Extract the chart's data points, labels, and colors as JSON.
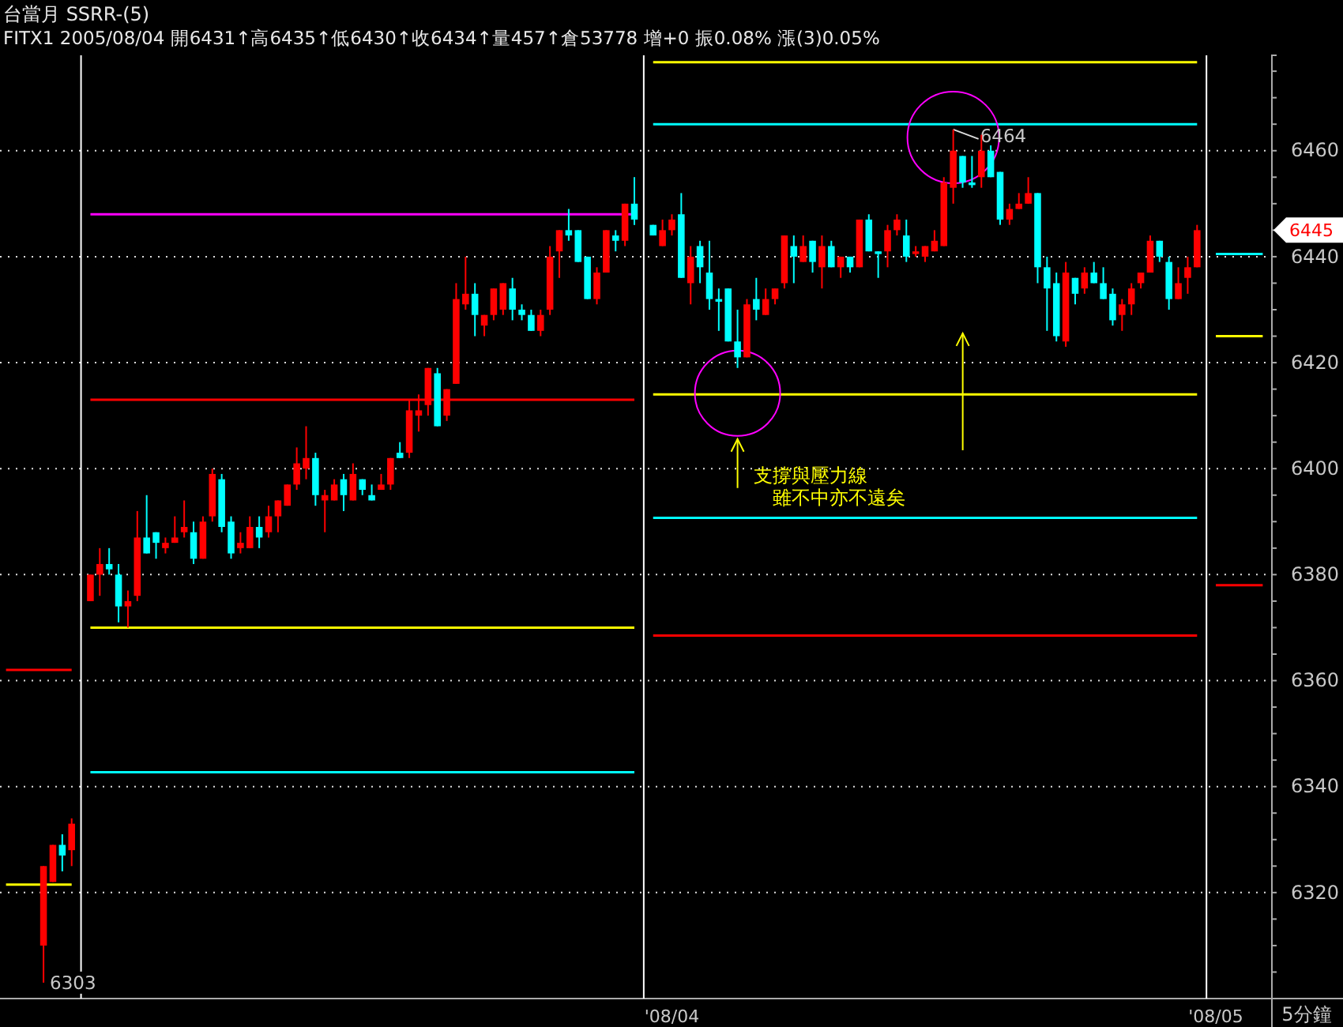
{
  "chart_data": {
    "type": "candlestick",
    "title": "台當月 SSRR-(5)",
    "subtitle": "FITX1 2005/08/04 開6431↑高6435↑低6430↑收6434↑量457↑倉53778 增+0 振0.08% 漲(3)0.05%",
    "xlabel": "5分鐘",
    "categories": [
      null,
      null,
      null,
      null,
      null,
      null,
      null,
      null,
      null,
      null,
      null,
      null,
      null,
      null,
      null,
      null,
      null,
      null,
      null,
      null,
      null,
      null,
      null,
      null,
      null,
      null,
      null,
      null,
      null,
      null,
      null,
      null,
      null,
      null,
      null,
      null,
      null,
      null,
      null,
      null,
      null,
      null,
      null,
      null,
      null,
      null,
      null,
      null,
      null,
      null,
      null,
      null,
      null,
      null,
      null,
      null,
      null,
      null,
      null,
      null,
      null,
      null,
      null,
      null,
      null,
      null,
      null,
      null,
      null,
      null,
      null,
      "'08/04",
      null,
      null,
      null,
      null,
      null,
      null,
      null,
      null,
      null,
      null,
      null,
      null,
      null,
      null,
      null,
      null,
      null,
      null,
      null,
      null,
      null,
      null,
      null,
      null,
      null,
      null,
      null,
      null,
      null,
      null,
      null,
      null,
      null,
      null,
      null,
      null,
      null,
      null,
      null,
      null,
      null,
      null,
      null,
      null,
      null,
      null,
      null,
      null,
      null,
      null,
      null,
      null,
      null,
      null,
      null,
      null,
      null,
      "'08/05",
      null,
      null,
      null,
      null,
      null
    ],
    "ohlc": [
      null,
      null,
      null,
      null,
      [
        6310,
        6325,
        6303,
        6325
      ],
      [
        6322,
        6329,
        6322,
        6329
      ],
      [
        6329,
        6331,
        6324,
        6327
      ],
      [
        6328,
        6334,
        6325,
        6333
      ],
      null,
      [
        6375,
        6380,
        6375,
        6380
      ],
      [
        6380,
        6385,
        6376,
        6382
      ],
      [
        6382,
        6385,
        6380,
        6381
      ],
      [
        6380,
        6382,
        6371,
        6374
      ],
      [
        6374,
        6377,
        6370,
        6375
      ],
      [
        6376,
        6392,
        6375,
        6387
      ],
      [
        6387,
        6395,
        6384,
        6384
      ],
      [
        6388,
        6388,
        6383,
        6386
      ],
      [
        6385,
        6387,
        6384,
        6386
      ],
      [
        6386,
        6391,
        6386,
        6387
      ],
      [
        6388,
        6394,
        6387,
        6389
      ],
      [
        6388,
        6390,
        6382,
        6383
      ],
      [
        6383,
        6391,
        6383,
        6390
      ],
      [
        6391,
        6400,
        6390,
        6399
      ],
      [
        6398,
        6399,
        6388,
        6389
      ],
      [
        6390,
        6391,
        6383,
        6384
      ],
      [
        6385,
        6388,
        6384,
        6386
      ],
      [
        6385,
        6391,
        6385,
        6389
      ],
      [
        6389,
        6391,
        6385,
        6387
      ],
      [
        6388,
        6393,
        6387,
        6391
      ],
      [
        6391,
        6394,
        6388,
        6394
      ],
      [
        6393,
        6397,
        6393,
        6397
      ],
      [
        6397,
        6404,
        6396,
        6401
      ],
      [
        6400,
        6408,
        6398,
        6402
      ],
      [
        6402,
        6403,
        6393,
        6395
      ],
      [
        6394,
        6396,
        6388,
        6395
      ],
      [
        6394,
        6398,
        6394,
        6397
      ],
      [
        6398,
        6399,
        6392,
        6395
      ],
      [
        6394,
        6401,
        6394,
        6399
      ],
      [
        6398,
        6398,
        6395,
        6396
      ],
      [
        6395,
        6397,
        6394,
        6394
      ],
      [
        6396,
        6399,
        6396,
        6397
      ],
      [
        6397,
        6402,
        6396,
        6402
      ],
      [
        6403,
        6405,
        6402,
        6402
      ],
      [
        6403,
        6413,
        6402,
        6411
      ],
      [
        6410,
        6414,
        6407,
        6411
      ],
      [
        6412,
        6419,
        6410,
        6419
      ],
      [
        6418,
        6419,
        6408,
        6408
      ],
      [
        6410,
        6415,
        6409,
        6415
      ],
      [
        6416,
        6435,
        6416,
        6432
      ],
      [
        6431,
        6440,
        6430,
        6433
      ],
      [
        6433,
        6435,
        6425,
        6429
      ],
      [
        6427,
        6429,
        6425,
        6429
      ],
      [
        6429,
        6434,
        6428,
        6434
      ],
      [
        6430,
        6435,
        6429,
        6435
      ],
      [
        6434,
        6436,
        6428,
        6430
      ],
      [
        6430,
        6431,
        6428,
        6429
      ],
      [
        6429,
        6430,
        6426,
        6426
      ],
      [
        6426,
        6430,
        6425,
        6429
      ],
      [
        6430,
        6442,
        6429,
        6440
      ],
      [
        6441,
        6445,
        6436,
        6445
      ],
      [
        6445,
        6449,
        6443,
        6444
      ],
      [
        6445,
        6445,
        6439,
        6439
      ],
      [
        6440,
        6440,
        6432,
        6432
      ],
      [
        6432,
        6438,
        6431,
        6437
      ],
      [
        6437,
        6445,
        6437,
        6445
      ],
      [
        6444,
        6445,
        6441,
        6443
      ],
      [
        6443,
        6450,
        6442,
        6450
      ],
      [
        6450,
        6455,
        6446,
        6447
      ],
      null,
      [
        6446,
        6446,
        6444,
        6444
      ],
      [
        6442,
        6447,
        6442,
        6445
      ],
      [
        6445,
        6448,
        6444,
        6447
      ],
      [
        6448,
        6452,
        6436,
        6436
      ],
      [
        6435,
        6442,
        6431,
        6440
      ],
      [
        6442,
        6443,
        6435,
        6438
      ],
      [
        6437,
        6443,
        6430,
        6432
      ],
      [
        6432,
        6434,
        6426,
        6431.5
      ],
      [
        6434,
        6434,
        6424,
        6424
      ],
      [
        6424,
        6430,
        6419,
        6421
      ],
      [
        6421,
        6432,
        6421,
        6431
      ],
      [
        6432,
        6436,
        6428,
        6430
      ],
      [
        6429,
        6434,
        6429,
        6432
      ],
      [
        6432,
        6434,
        6431,
        6434
      ],
      [
        6435,
        6444,
        6434,
        6444
      ],
      [
        6442,
        6444,
        6435,
        6440
      ],
      [
        6439,
        6444,
        6439,
        6442
      ],
      [
        6443,
        6443,
        6437,
        6439
      ],
      [
        6438,
        6444,
        6434,
        6442
      ],
      [
        6442,
        6443,
        6438,
        6438
      ],
      [
        6438,
        6440,
        6436,
        6440
      ],
      [
        6440,
        6440,
        6437,
        6438
      ],
      [
        6438,
        6447,
        6438,
        6447
      ],
      [
        6447,
        6448,
        6441,
        6441
      ],
      [
        6441,
        6441,
        6436,
        6440.5
      ],
      [
        6441,
        6446,
        6438,
        6445
      ],
      [
        6445,
        6448,
        6444,
        6447
      ],
      [
        6444,
        6447,
        6439,
        6440
      ],
      [
        6440.5,
        6442,
        6440,
        6441
      ],
      [
        6440,
        6442,
        6439,
        6442
      ],
      [
        6441,
        6445,
        6441,
        6443
      ],
      [
        6442,
        6455,
        6442,
        6454
      ],
      [
        6453,
        6464,
        6450,
        6460
      ],
      [
        6459,
        6459,
        6453,
        6454
      ],
      [
        6454,
        6459,
        6453,
        6453.5
      ],
      [
        6455,
        6463,
        6453,
        6460
      ],
      [
        6460,
        6461,
        6455,
        6455
      ],
      [
        6456,
        6456,
        6446,
        6447
      ],
      [
        6447,
        6450,
        6446,
        6449
      ],
      [
        6449,
        6452,
        6449,
        6450
      ],
      [
        6450,
        6455,
        6450,
        6452
      ],
      [
        6452,
        6452,
        6435,
        6438
      ],
      [
        6438,
        6440,
        6426,
        6434
      ],
      [
        6435,
        6437,
        6424,
        6425
      ],
      [
        6424,
        6439,
        6423,
        6437
      ],
      [
        6436,
        6436,
        6431,
        6433
      ],
      [
        6434,
        6438,
        6433,
        6437
      ],
      [
        6437,
        6439,
        6435,
        6435
      ],
      [
        6435,
        6438,
        6432,
        6432
      ],
      [
        6433,
        6434,
        6427,
        6428
      ],
      [
        6429,
        6432,
        6426,
        6431
      ],
      [
        6431,
        6435,
        6429,
        6434
      ],
      [
        6435,
        6437,
        6434,
        6437
      ],
      [
        6437,
        6444,
        6437,
        6443
      ],
      [
        6443,
        6443,
        6439,
        6440
      ],
      [
        6439,
        6440,
        6430,
        6432
      ],
      [
        6432,
        6438,
        6432,
        6435
      ],
      [
        6436,
        6440,
        6433,
        6438
      ],
      [
        6438,
        6446,
        6438,
        6445
      ],
      null,
      null,
      null,
      null,
      null,
      null,
      null
    ],
    "colors": [
      null,
      null,
      null,
      null,
      "#ff0000",
      "#ff0000",
      "#00ffff",
      "#ff0000",
      null,
      "#ff0000",
      "#ff0000",
      "#00ffff",
      "#00ffff",
      "#ff0000",
      "#ff0000",
      "#00ffff",
      "#00ffff",
      "#ff0000",
      "#ff0000",
      "#ff0000",
      "#00ffff",
      "#ff0000",
      "#ff0000",
      "#00ffff",
      "#00ffff",
      "#ff0000",
      "#ff0000",
      "#00ffff",
      "#ff0000",
      "#ff0000",
      "#ff0000",
      "#ff0000",
      "#ff0000",
      "#00ffff",
      "#ff0000",
      "#ff0000",
      "#00ffff",
      "#ff0000",
      "#00ffff",
      "#00ffff",
      "#ff0000",
      "#ff0000",
      "#00ffff",
      "#ff0000",
      "#ff0000",
      "#ff0000",
      "#00ffff",
      "#ff0000",
      "#ff0000",
      "#ff0000",
      "#00ffff",
      "#ff0000",
      "#ff0000",
      "#ff0000",
      "#00ffff",
      "#00ffff",
      "#00ffff",
      "#ff0000",
      "#ff0000",
      "#ff0000",
      "#00ffff",
      "#00ffff",
      "#00ffff",
      "#ff0000",
      "#ff0000",
      "#00ffff",
      "#ff0000",
      "#00ffff",
      null,
      "#00ffff",
      "#ff0000",
      "#ff0000",
      "#00ffff",
      "#ff0000",
      "#00ffff",
      "#00ffff",
      "#00ffff",
      "#00ffff",
      "#00ffff",
      "#ff0000",
      "#00ffff",
      "#ff0000",
      "#ff0000",
      "#ff0000",
      "#00ffff",
      "#ff0000",
      "#00ffff",
      "#ff0000",
      "#00ffff",
      "#ff0000",
      "#00ffff",
      "#ff0000",
      "#00ffff",
      "#00ffff",
      "#ff0000",
      "#ff0000",
      "#00ffff",
      "#ff0000",
      "#ff0000",
      "#ff0000",
      "#ff0000",
      "#ff0000",
      "#00ffff",
      "#00ffff",
      "#ff0000",
      "#00ffff",
      "#00ffff",
      "#ff0000",
      "#ff0000",
      "#ff0000",
      "#00ffff",
      "#00ffff",
      "#00ffff",
      "#ff0000",
      "#00ffff",
      "#ff0000",
      "#00ffff",
      "#00ffff",
      "#00ffff",
      "#ff0000",
      "#ff0000",
      "#ff0000",
      "#ff0000",
      "#00ffff",
      "#00ffff",
      "#ff0000",
      "#ff0000",
      "#ff0000",
      null,
      null,
      null,
      null,
      null,
      null,
      null
    ],
    "series": [
      {
        "type": "line",
        "color": "#ff0000",
        "values": [
          6362,
          6362,
          6362,
          6362,
          6362,
          6362,
          6362,
          6362,
          null,
          6413,
          6413,
          6413,
          6413,
          6413,
          6413,
          6413,
          6413,
          6413,
          6413,
          6413,
          6413,
          6413,
          6413,
          6413,
          6413,
          6413,
          6413,
          6413,
          6413,
          6413,
          6413,
          6413,
          6413,
          6413,
          6413,
          6413,
          6413,
          6413,
          6413,
          6413,
          6413,
          6413,
          6413,
          6413,
          6413,
          6413,
          6413,
          6413,
          6413,
          6413,
          6413,
          6413,
          6413,
          6413,
          6413,
          6413,
          6413,
          6413,
          6413,
          6413,
          6413,
          6413,
          6413,
          6413,
          6413,
          6413,
          6413,
          6413,
          null,
          6368.5,
          6368.5,
          6368.5,
          6368.5,
          6368.5,
          6368.5,
          6368.5,
          6368.5,
          6368.5,
          6368.5,
          6368.5,
          6368.5,
          6368.5,
          6368.5,
          6368.5,
          6368.5,
          6368.5,
          6368.5,
          6368.5,
          6368.5,
          6368.5,
          6368.5,
          6368.5,
          6368.5,
          6368.5,
          6368.5,
          6368.5,
          6368.5,
          6368.5,
          6368.5,
          6368.5,
          6368.5,
          6368.5,
          6368.5,
          6368.5,
          6368.5,
          6368.5,
          6368.5,
          6368.5,
          6368.5,
          6368.5,
          6368.5,
          6368.5,
          6368.5,
          6368.5,
          6368.5,
          6368.5,
          6368.5,
          6368.5,
          6368.5,
          6368.5,
          6368.5,
          6368.5,
          6368.5,
          6368.5,
          6368.5,
          6368.5,
          6368.5,
          6368.5,
          null,
          6378,
          6378,
          6378,
          6378,
          6378,
          6378
        ]
      },
      {
        "type": "line",
        "color": "#ffff00",
        "values": [
          6321.5,
          6321.5,
          6321.5,
          6321.5,
          6321.5,
          6321.5,
          6321.5,
          6321.5,
          null,
          6370,
          6370,
          6370,
          6370,
          6370,
          6370,
          6370,
          6370,
          6370,
          6370,
          6370,
          6370,
          6370,
          6370,
          6370,
          6370,
          6370,
          6370,
          6370,
          6370,
          6370,
          6370,
          6370,
          6370,
          6370,
          6370,
          6370,
          6370,
          6370,
          6370,
          6370,
          6370,
          6370,
          6370,
          6370,
          6370,
          6370,
          6370,
          6370,
          6370,
          6370,
          6370,
          6370,
          6370,
          6370,
          6370,
          6370,
          6370,
          6370,
          6370,
          6370,
          6370,
          6370,
          6370,
          6370,
          6370,
          6370,
          6370,
          6370,
          null,
          6414,
          6414,
          6414,
          6414,
          6414,
          6414,
          6414,
          6414,
          6414,
          6414,
          6414,
          6414,
          6414,
          6414,
          6414,
          6414,
          6414,
          6414,
          6414,
          6414,
          6414,
          6414,
          6414,
          6414,
          6414,
          6414,
          6414,
          6414,
          6414,
          6414,
          6414,
          6414,
          6414,
          6414,
          6414,
          6414,
          6414,
          6414,
          6414,
          6414,
          6414,
          6414,
          6414,
          6414,
          6414,
          6414,
          6414,
          6414,
          6414,
          6414,
          6414,
          6414,
          6414,
          6414,
          6414,
          6414,
          6414,
          6414,
          6414,
          null,
          6425,
          6425,
          6425,
          6425,
          6425,
          6425
        ]
      },
      {
        "type": "line",
        "color": "#00ffff",
        "values": [
          null,
          null,
          null,
          null,
          null,
          null,
          null,
          null,
          null,
          6342.7,
          6342.7,
          6342.7,
          6342.7,
          6342.7,
          6342.7,
          6342.7,
          6342.7,
          6342.7,
          6342.7,
          6342.7,
          6342.7,
          6342.7,
          6342.7,
          6342.7,
          6342.7,
          6342.7,
          6342.7,
          6342.7,
          6342.7,
          6342.7,
          6342.7,
          6342.7,
          6342.7,
          6342.7,
          6342.7,
          6342.7,
          6342.7,
          6342.7,
          6342.7,
          6342.7,
          6342.7,
          6342.7,
          6342.7,
          6342.7,
          6342.7,
          6342.7,
          6342.7,
          6342.7,
          6342.7,
          6342.7,
          6342.7,
          6342.7,
          6342.7,
          6342.7,
          6342.7,
          6342.7,
          6342.7,
          6342.7,
          6342.7,
          6342.7,
          6342.7,
          6342.7,
          6342.7,
          6342.7,
          6342.7,
          6342.7,
          6342.7,
          6342.7,
          null,
          6390.7,
          6390.7,
          6390.7,
          6390.7,
          6390.7,
          6390.7,
          6390.7,
          6390.7,
          6390.7,
          6390.7,
          6390.7,
          6390.7,
          6390.7,
          6390.7,
          6390.7,
          6390.7,
          6390.7,
          6390.7,
          6390.7,
          6390.7,
          6390.7,
          6390.7,
          6390.7,
          6390.7,
          6390.7,
          6390.7,
          6390.7,
          6390.7,
          6390.7,
          6390.7,
          6390.7,
          6390.7,
          6390.7,
          6390.7,
          6390.7,
          6390.7,
          6390.7,
          6390.7,
          6390.7,
          6390.7,
          6390.7,
          6390.7,
          6390.7,
          6390.7,
          6390.7,
          6390.7,
          6390.7,
          6390.7,
          6390.7,
          6390.7,
          6390.7,
          6390.7,
          6390.7,
          6390.7,
          6390.7,
          6390.7,
          6390.7,
          6390.7,
          6390.7,
          null,
          6440.5,
          6440.5,
          6440.5,
          6440.5,
          6440.5,
          6440.5
        ]
      },
      {
        "type": "line",
        "color": "#ffff00",
        "values": [
          null,
          null,
          null,
          null,
          null,
          null,
          null,
          null,
          null,
          null,
          null,
          null,
          null,
          null,
          null,
          null,
          null,
          null,
          null,
          null,
          null,
          null,
          null,
          null,
          null,
          null,
          null,
          null,
          null,
          null,
          null,
          null,
          null,
          null,
          null,
          null,
          null,
          null,
          null,
          null,
          null,
          null,
          null,
          null,
          null,
          null,
          null,
          null,
          null,
          null,
          null,
          null,
          null,
          null,
          null,
          null,
          null,
          null,
          null,
          null,
          null,
          null,
          null,
          null,
          null,
          null,
          null,
          null,
          null,
          6476.7,
          6476.7,
          6476.7,
          6476.7,
          6476.7,
          6476.7,
          6476.7,
          6476.7,
          6476.7,
          6476.7,
          6476.7,
          6476.7,
          6476.7,
          6476.7,
          6476.7,
          6476.7,
          6476.7,
          6476.7,
          6476.7,
          6476.7,
          6476.7,
          6476.7,
          6476.7,
          6476.7,
          6476.7,
          6476.7,
          6476.7,
          6476.7,
          6476.7,
          6476.7,
          6476.7,
          6476.7,
          6476.7,
          6476.7,
          6476.7,
          6476.7,
          6476.7,
          6476.7,
          6476.7,
          6476.7,
          6476.7,
          6476.7,
          6476.7,
          6476.7,
          6476.7,
          6476.7,
          6476.7,
          6476.7,
          6476.7,
          6476.7,
          6476.7,
          6476.7,
          6476.7,
          6476.7,
          6476.7,
          6476.7,
          6476.7,
          6476.7,
          6476.7,
          null,
          null,
          null,
          null,
          null,
          null,
          null
        ]
      },
      {
        "type": "line",
        "color": "#00ffff",
        "values": [
          null,
          null,
          null,
          null,
          null,
          null,
          null,
          null,
          null,
          null,
          null,
          null,
          null,
          null,
          null,
          null,
          null,
          null,
          null,
          null,
          null,
          null,
          null,
          null,
          null,
          null,
          null,
          null,
          null,
          null,
          null,
          null,
          null,
          null,
          null,
          null,
          null,
          null,
          null,
          null,
          null,
          null,
          null,
          null,
          null,
          null,
          null,
          null,
          null,
          null,
          null,
          null,
          null,
          null,
          null,
          null,
          null,
          null,
          null,
          null,
          null,
          null,
          null,
          null,
          null,
          null,
          null,
          null,
          null,
          6465,
          6465,
          6465,
          6465,
          6465,
          6465,
          6465,
          6465,
          6465,
          6465,
          6465,
          6465,
          6465,
          6465,
          6465,
          6465,
          6465,
          6465,
          6465,
          6465,
          6465,
          6465,
          6465,
          6465,
          6465,
          6465,
          6465,
          6465,
          6465,
          6465,
          6465,
          6465,
          6465,
          6465,
          6465,
          6465,
          6465,
          6465,
          6465,
          6465,
          6465,
          6465,
          6465,
          6465,
          6465,
          6465,
          6465,
          6465,
          6465,
          6465,
          6465,
          6465,
          6465,
          6465,
          6465,
          6465,
          6465,
          6465,
          6465,
          null,
          null,
          null,
          null,
          null,
          null,
          null
        ]
      },
      {
        "type": "line",
        "color": "#ff00ff",
        "values": [
          null,
          null,
          null,
          null,
          null,
          null,
          null,
          null,
          null,
          6448,
          6448,
          6448,
          6448,
          6448,
          6448,
          6448,
          6448,
          6448,
          6448,
          6448,
          6448,
          6448,
          6448,
          6448,
          6448,
          6448,
          6448,
          6448,
          6448,
          6448,
          6448,
          6448,
          6448,
          6448,
          6448,
          6448,
          6448,
          6448,
          6448,
          6448,
          6448,
          6448,
          6448,
          6448,
          6448,
          6448,
          6448,
          6448,
          6448,
          6448,
          6448,
          6448,
          6448,
          6448,
          6448,
          6448,
          6448,
          6448,
          6448,
          6448,
          6448,
          6448,
          6448,
          6448,
          6448,
          6448,
          6448,
          6448,
          null,
          null,
          null,
          null,
          null,
          null,
          null,
          null,
          null,
          null,
          null,
          null,
          null,
          null,
          null,
          null,
          null,
          null,
          null,
          null,
          null,
          null,
          null,
          null,
          null,
          null,
          null,
          null,
          null,
          null,
          null,
          null,
          null,
          null,
          null,
          null,
          null,
          null,
          null,
          null,
          null,
          null,
          null,
          null,
          null,
          null,
          null,
          null,
          null,
          null,
          null,
          null,
          null,
          null,
          null,
          null,
          null,
          null,
          null,
          null,
          null,
          null,
          null,
          null,
          null,
          null,
          null
        ]
      }
    ],
    "ylim": [
      6300,
      6478
    ],
    "yticks": [
      {
        "value": 6305,
        "label": null
      },
      {
        "value": 6310,
        "label": null
      },
      {
        "value": 6315,
        "label": null
      },
      6320,
      {
        "value": 6325,
        "label": null
      },
      {
        "value": 6330,
        "label": null
      },
      {
        "value": 6335,
        "label": null
      },
      6340,
      {
        "value": 6345,
        "label": null
      },
      {
        "value": 6350,
        "label": null
      },
      {
        "value": 6355,
        "label": null
      },
      6360,
      {
        "value": 6365,
        "label": null
      },
      {
        "value": 6370,
        "label": null
      },
      {
        "value": 6375,
        "label": null
      },
      6380,
      {
        "value": 6385,
        "label": null
      },
      {
        "value": 6390,
        "label": null
      },
      {
        "value": 6395,
        "label": null
      },
      6400,
      {
        "value": 6405,
        "label": null
      },
      {
        "value": 6410,
        "label": null
      },
      {
        "value": 6415,
        "label": null
      },
      6420,
      {
        "value": 6425,
        "label": null
      },
      {
        "value": 6430,
        "label": null
      },
      {
        "value": 6435,
        "label": null
      },
      6440,
      {
        "value": 6445,
        "label": null
      },
      {
        "value": 6450,
        "label": null
      },
      {
        "value": 6455,
        "label": null
      },
      6460,
      {
        "value": 6465,
        "label": null
      },
      {
        "value": 6470,
        "label": null
      },
      {
        "value": 6475,
        "label": null
      }
    ],
    "grid": "y",
    "annotations": [
      "支撐與壓力線雖不中亦不遠矣",
      "6303",
      {
        "text": "6464",
        "y": 6464
      },
      "6445"
    ]
  }
}
